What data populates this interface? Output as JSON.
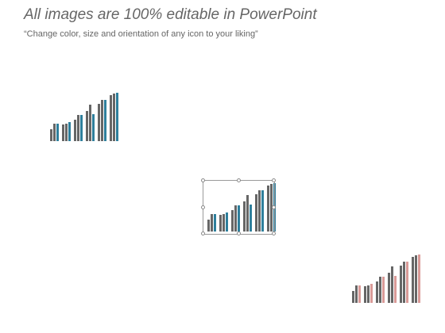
{
  "slide": {
    "title": "All images are 100% editable in PowerPoint",
    "subtitle": "“Change color, size and orientation of any icon to your liking”"
  },
  "icons": [
    {
      "name": "bar-chart-icon-teal",
      "accent": "#2e7f9c",
      "base": "#666666"
    },
    {
      "name": "bar-chart-icon-teal-selected",
      "accent": "#2e7f9c",
      "base": "#666666"
    },
    {
      "name": "bar-chart-icon-pink",
      "accent": "#d99a97",
      "base": "#666666"
    }
  ]
}
